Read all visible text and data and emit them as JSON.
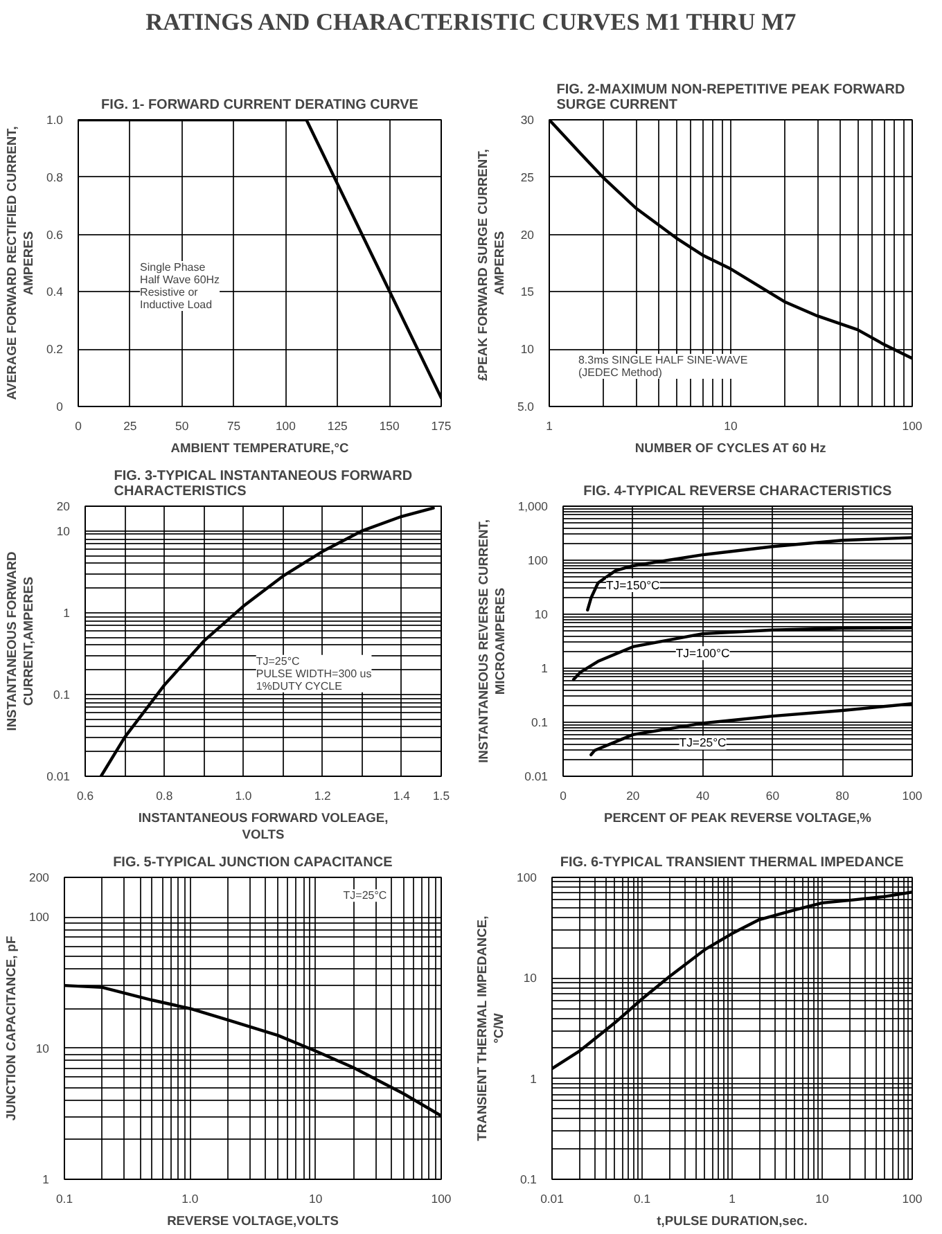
{
  "chart_data": [
    {
      "type": "other",
      "title": "RATINGS AND CHARACTERISTIC CURVES M1 THRU M7"
    },
    {
      "type": "line",
      "title": "FIG. 1- FORWARD CURRENT DERATING CURVE",
      "xlabel": "AMBIENT TEMPERATURE,°C",
      "ylabel": "AVERAGE FORWARD RECTIFIED CURRENT,\nAMPERES",
      "xlim": [
        0,
        175
      ],
      "ylim": [
        0,
        1.0
      ],
      "xticks": [
        0,
        25,
        50,
        75,
        100,
        125,
        150,
        175
      ],
      "yticks": [
        0,
        0.2,
        0.4,
        0.6,
        0.8,
        {
          "value": 1,
          "label": "1.0"
        }
      ],
      "grid": true,
      "annotations": [
        "Single Phase\nHalf Wave 60Hz\nResistive or\nInductive Load"
      ],
      "series": [
        {
          "color": "#000000",
          "x": [
            0,
            110,
            175
          ],
          "values": [
            1.0,
            1.0,
            0.03
          ]
        }
      ]
    },
    {
      "type": "line",
      "title": "FIG. 2-MAXIMUM NON-REPETITIVE PEAK FORWARD\nSURGE CURRENT",
      "xlabel": "NUMBER OF CYCLES AT 60 Hz",
      "ylabel": "£PEAK  FORWARD SURGE CURRENT,\nAMPERES",
      "log": "x",
      "xlim": [
        1,
        100
      ],
      "ylim": [
        5.0,
        30
      ],
      "xticks": [
        1,
        {
          "value": 2,
          "label": null
        },
        {
          "value": 3,
          "label": null
        },
        {
          "value": 4,
          "label": null
        },
        {
          "value": 5,
          "label": null
        },
        {
          "value": 6,
          "label": null
        },
        {
          "value": 7,
          "label": null
        },
        {
          "value": 8,
          "label": null
        },
        {
          "value": 9,
          "label": null
        },
        10,
        {
          "value": 20,
          "label": null
        },
        {
          "value": 30,
          "label": null
        },
        {
          "value": 40,
          "label": null
        },
        {
          "value": 50,
          "label": null
        },
        {
          "value": 60,
          "label": null
        },
        {
          "value": 70,
          "label": null
        },
        {
          "value": 80,
          "label": null
        },
        {
          "value": 90,
          "label": null
        },
        100
      ],
      "yticks": [
        {
          "value": 5,
          "label": "5.0"
        },
        10,
        15,
        20,
        25,
        30
      ],
      "grid": true,
      "annotations": [
        "8.3ms SINGLE HALF SINE-WAVE\n(JEDEC Method)"
      ],
      "series": [
        {
          "color": "#000000",
          "x": [
            1,
            1.5,
            2,
            3,
            5,
            7,
            10,
            20,
            30,
            50,
            70,
            100
          ],
          "values": [
            30,
            27,
            24.9,
            22.3,
            19.7,
            18.2,
            17.0,
            14.1,
            12.9,
            11.7,
            10.4,
            9.2
          ]
        }
      ]
    },
    {
      "type": "line",
      "title": "FIG. 3-TYPICAL INSTANTANEOUS FORWARD\nCHARACTERISTICS",
      "xlabel": "INSTANTANEOUS FORWARD VOLEAGE,\nVOLTS",
      "ylabel": "INSTANTANEOUS FORWARD\nCURRENT,AMPERES",
      "log": "y",
      "xlim": [
        0.6,
        1.5
      ],
      "ylim": [
        0.01,
        20
      ],
      "xticks": [
        0.6,
        {
          "value": 0.7,
          "label": null
        },
        0.8,
        {
          "value": 0.9,
          "label": null
        },
        {
          "value": 1,
          "label": "1.0"
        },
        {
          "value": 1.1,
          "label": null
        },
        1.2,
        {
          "value": 1.3,
          "label": null
        },
        1.4,
        1.5
      ],
      "yticks": [
        0.01,
        {
          "value": 0.02,
          "label": null
        },
        {
          "value": 0.03,
          "label": null
        },
        {
          "value": 0.04,
          "label": null
        },
        {
          "value": 0.05,
          "label": null
        },
        {
          "value": 0.06,
          "label": null
        },
        {
          "value": 0.07,
          "label": null
        },
        {
          "value": 0.08,
          "label": null
        },
        {
          "value": 0.09,
          "label": null
        },
        0.1,
        {
          "value": 0.2,
          "label": null
        },
        {
          "value": 0.3,
          "label": null
        },
        {
          "value": 0.4,
          "label": null
        },
        {
          "value": 0.5,
          "label": null
        },
        {
          "value": 0.6,
          "label": null
        },
        {
          "value": 0.7,
          "label": null
        },
        {
          "value": 0.8,
          "label": null
        },
        {
          "value": 0.9,
          "label": null
        },
        1,
        {
          "value": 2,
          "label": null
        },
        {
          "value": 3,
          "label": null
        },
        {
          "value": 4,
          "label": null
        },
        {
          "value": 5,
          "label": null
        },
        {
          "value": 6,
          "label": null
        },
        {
          "value": 7,
          "label": null
        },
        {
          "value": 8,
          "label": null
        },
        {
          "value": 9,
          "label": null
        },
        10,
        20
      ],
      "grid": true,
      "annotations": [
        "TJ=25°C\nPULSE WIDTH=300 us\n1%DUTY CYCLE"
      ],
      "series": [
        {
          "color": "#000000",
          "x": [
            0.64,
            0.7,
            0.8,
            0.9,
            1.0,
            1.1,
            1.2,
            1.3,
            1.4,
            1.48
          ],
          "values": [
            0.01,
            0.03,
            0.13,
            0.45,
            1.2,
            2.8,
            5.6,
            10,
            15,
            19
          ]
        }
      ]
    },
    {
      "type": "line",
      "title": "FIG. 4-TYPICAL REVERSE CHARACTERISTICS",
      "xlabel": "PERCENT OF PEAK REVERSE VOLTAGE,%",
      "ylabel": "INSTANTANEOUS REVERSE CURRENT,\nMICROAMPERES",
      "log": "y",
      "xlim": [
        0,
        100
      ],
      "ylim": [
        0.01,
        1000
      ],
      "xticks": [
        0,
        20,
        40,
        60,
        80,
        100
      ],
      "yticks": [
        0.01,
        {
          "value": 0.02,
          "label": null
        },
        {
          "value": 0.03,
          "label": null
        },
        {
          "value": 0.04,
          "label": null
        },
        {
          "value": 0.05,
          "label": null
        },
        {
          "value": 0.06,
          "label": null
        },
        {
          "value": 0.07,
          "label": null
        },
        {
          "value": 0.08,
          "label": null
        },
        {
          "value": 0.09,
          "label": null
        },
        0.1,
        {
          "value": 0.2,
          "label": null
        },
        {
          "value": 0.3,
          "label": null
        },
        {
          "value": 0.4,
          "label": null
        },
        {
          "value": 0.5,
          "label": null
        },
        {
          "value": 0.6,
          "label": null
        },
        {
          "value": 0.7,
          "label": null
        },
        {
          "value": 0.8,
          "label": null
        },
        {
          "value": 0.9,
          "label": null
        },
        1,
        {
          "value": 2,
          "label": null
        },
        {
          "value": 3,
          "label": null
        },
        {
          "value": 4,
          "label": null
        },
        {
          "value": 5,
          "label": null
        },
        {
          "value": 6,
          "label": null
        },
        {
          "value": 7,
          "label": null
        },
        {
          "value": 8,
          "label": null
        },
        {
          "value": 9,
          "label": null
        },
        10,
        {
          "value": 20,
          "label": null
        },
        {
          "value": 30,
          "label": null
        },
        {
          "value": 40,
          "label": null
        },
        {
          "value": 50,
          "label": null
        },
        {
          "value": 60,
          "label": null
        },
        {
          "value": 70,
          "label": null
        },
        {
          "value": 80,
          "label": null
        },
        {
          "value": 90,
          "label": null
        },
        100,
        {
          "value": 200,
          "label": null
        },
        {
          "value": 300,
          "label": null
        },
        {
          "value": 400,
          "label": null
        },
        {
          "value": 500,
          "label": null
        },
        {
          "value": 600,
          "label": null
        },
        {
          "value": 700,
          "label": null
        },
        {
          "value": 800,
          "label": null
        },
        {
          "value": 900,
          "label": null
        },
        {
          "value": 1000,
          "label": "1,000"
        }
      ],
      "grid": true,
      "series": [
        {
          "name": "TJ=150°C",
          "color": "#000000",
          "x": [
            7,
            8,
            10,
            15,
            20,
            40,
            60,
            80,
            100
          ],
          "values": [
            12,
            20,
            38,
            64,
            79,
            126,
            179,
            234,
            262
          ]
        },
        {
          "name": "TJ=100°C",
          "color": "#000000",
          "x": [
            3,
            5,
            10,
            20,
            40,
            60,
            80,
            100
          ],
          "values": [
            0.62,
            0.85,
            1.34,
            2.5,
            4.35,
            5.1,
            5.5,
            5.6
          ]
        },
        {
          "name": "TJ=25°C",
          "color": "#000000",
          "x": [
            8,
            9,
            20,
            40,
            60,
            80,
            100
          ],
          "values": [
            0.025,
            0.03,
            0.059,
            0.096,
            0.13,
            0.165,
            0.22
          ]
        }
      ]
    },
    {
      "type": "line",
      "title": "FIG. 5-TYPICAL JUNCTION CAPACITANCE",
      "xlabel": "REVERSE VOLTAGE,VOLTS",
      "ylabel": "JUNCTION CAPACITANCE, pF",
      "log": "xy",
      "xlim": [
        0.1,
        100
      ],
      "ylim": [
        1,
        200
      ],
      "xticks": [
        0.1,
        {
          "value": 0.2,
          "label": null
        },
        {
          "value": 0.3,
          "label": null
        },
        {
          "value": 0.4,
          "label": null
        },
        {
          "value": 0.5,
          "label": null
        },
        {
          "value": 0.6,
          "label": null
        },
        {
          "value": 0.7,
          "label": null
        },
        {
          "value": 0.8,
          "label": null
        },
        {
          "value": 0.9,
          "label": null
        },
        {
          "value": 1,
          "label": "1.0"
        },
        {
          "value": 2,
          "label": null
        },
        {
          "value": 3,
          "label": null
        },
        {
          "value": 4,
          "label": null
        },
        {
          "value": 5,
          "label": null
        },
        {
          "value": 6,
          "label": null
        },
        {
          "value": 7,
          "label": null
        },
        {
          "value": 8,
          "label": null
        },
        {
          "value": 9,
          "label": null
        },
        10,
        {
          "value": 20,
          "label": null
        },
        {
          "value": 30,
          "label": null
        },
        {
          "value": 40,
          "label": null
        },
        {
          "value": 50,
          "label": null
        },
        {
          "value": 60,
          "label": null
        },
        {
          "value": 70,
          "label": null
        },
        {
          "value": 80,
          "label": null
        },
        {
          "value": 90,
          "label": null
        },
        100
      ],
      "yticks": [
        1,
        {
          "value": 2,
          "label": null
        },
        {
          "value": 3,
          "label": null
        },
        {
          "value": 4,
          "label": null
        },
        {
          "value": 5,
          "label": null
        },
        {
          "value": 6,
          "label": null
        },
        {
          "value": 7,
          "label": null
        },
        {
          "value": 8,
          "label": null
        },
        {
          "value": 9,
          "label": null
        },
        10,
        {
          "value": 20,
          "label": null
        },
        {
          "value": 30,
          "label": null
        },
        {
          "value": 40,
          "label": null
        },
        {
          "value": 50,
          "label": null
        },
        {
          "value": 60,
          "label": null
        },
        {
          "value": 70,
          "label": null
        },
        {
          "value": 80,
          "label": null
        },
        {
          "value": 90,
          "label": null
        },
        100,
        200
      ],
      "grid": true,
      "annotations": [
        "TJ=25°C"
      ],
      "series": [
        {
          "color": "#000000",
          "x": [
            0.1,
            0.2,
            0.5,
            1,
            2,
            5,
            10,
            20,
            50,
            100
          ],
          "values": [
            30,
            29,
            23.2,
            20,
            16.4,
            12.5,
            9.5,
            7.1,
            4.5,
            3.05
          ]
        }
      ]
    },
    {
      "type": "line",
      "title": "FIG. 6-TYPICAL TRANSIENT THERMAL IMPEDANCE",
      "xlabel": "t,PULSE DURATION,sec.",
      "ylabel": "TRANSIENT THERMAL IMPEDANCE,\n°C/W",
      "log": "xy",
      "xlim": [
        0.01,
        100
      ],
      "ylim": [
        0.1,
        100
      ],
      "xticks": [
        0.01,
        {
          "value": 0.02,
          "label": null
        },
        {
          "value": 0.03,
          "label": null
        },
        {
          "value": 0.04,
          "label": null
        },
        {
          "value": 0.05,
          "label": null
        },
        {
          "value": 0.06,
          "label": null
        },
        {
          "value": 0.07,
          "label": null
        },
        {
          "value": 0.08,
          "label": null
        },
        {
          "value": 0.09,
          "label": null
        },
        0.1,
        {
          "value": 0.2,
          "label": null
        },
        {
          "value": 0.3,
          "label": null
        },
        {
          "value": 0.4,
          "label": null
        },
        {
          "value": 0.5,
          "label": null
        },
        {
          "value": 0.6,
          "label": null
        },
        {
          "value": 0.7,
          "label": null
        },
        {
          "value": 0.8,
          "label": null
        },
        {
          "value": 0.9,
          "label": null
        },
        1,
        {
          "value": 2,
          "label": null
        },
        {
          "value": 3,
          "label": null
        },
        {
          "value": 4,
          "label": null
        },
        {
          "value": 5,
          "label": null
        },
        {
          "value": 6,
          "label": null
        },
        {
          "value": 7,
          "label": null
        },
        {
          "value": 8,
          "label": null
        },
        {
          "value": 9,
          "label": null
        },
        10,
        {
          "value": 20,
          "label": null
        },
        {
          "value": 30,
          "label": null
        },
        {
          "value": 40,
          "label": null
        },
        {
          "value": 50,
          "label": null
        },
        {
          "value": 60,
          "label": null
        },
        {
          "value": 70,
          "label": null
        },
        {
          "value": 80,
          "label": null
        },
        {
          "value": 90,
          "label": null
        },
        100
      ],
      "yticks": [
        0.1,
        {
          "value": 0.2,
          "label": null
        },
        {
          "value": 0.3,
          "label": null
        },
        {
          "value": 0.4,
          "label": null
        },
        {
          "value": 0.5,
          "label": null
        },
        {
          "value": 0.6,
          "label": null
        },
        {
          "value": 0.7,
          "label": null
        },
        {
          "value": 0.8,
          "label": null
        },
        {
          "value": 0.9,
          "label": null
        },
        1,
        {
          "value": 2,
          "label": null
        },
        {
          "value": 3,
          "label": null
        },
        {
          "value": 4,
          "label": null
        },
        {
          "value": 5,
          "label": null
        },
        {
          "value": 6,
          "label": null
        },
        {
          "value": 7,
          "label": null
        },
        {
          "value": 8,
          "label": null
        },
        {
          "value": 9,
          "label": null
        },
        10,
        {
          "value": 20,
          "label": null
        },
        {
          "value": 30,
          "label": null
        },
        {
          "value": 40,
          "label": null
        },
        {
          "value": 50,
          "label": null
        },
        {
          "value": 60,
          "label": null
        },
        {
          "value": 70,
          "label": null
        },
        {
          "value": 80,
          "label": null
        },
        {
          "value": 90,
          "label": null
        },
        100
      ],
      "grid": true,
      "series": [
        {
          "color": "#000000",
          "x": [
            0.01,
            0.02,
            0.05,
            0.1,
            0.2,
            0.5,
            1,
            2,
            5,
            10,
            20,
            50,
            100
          ],
          "values": [
            1.26,
            1.87,
            3.6,
            6.2,
            10.3,
            19.2,
            27.7,
            38,
            47.6,
            55.8,
            59.2,
            64.6,
            71.5
          ]
        }
      ]
    }
  ]
}
